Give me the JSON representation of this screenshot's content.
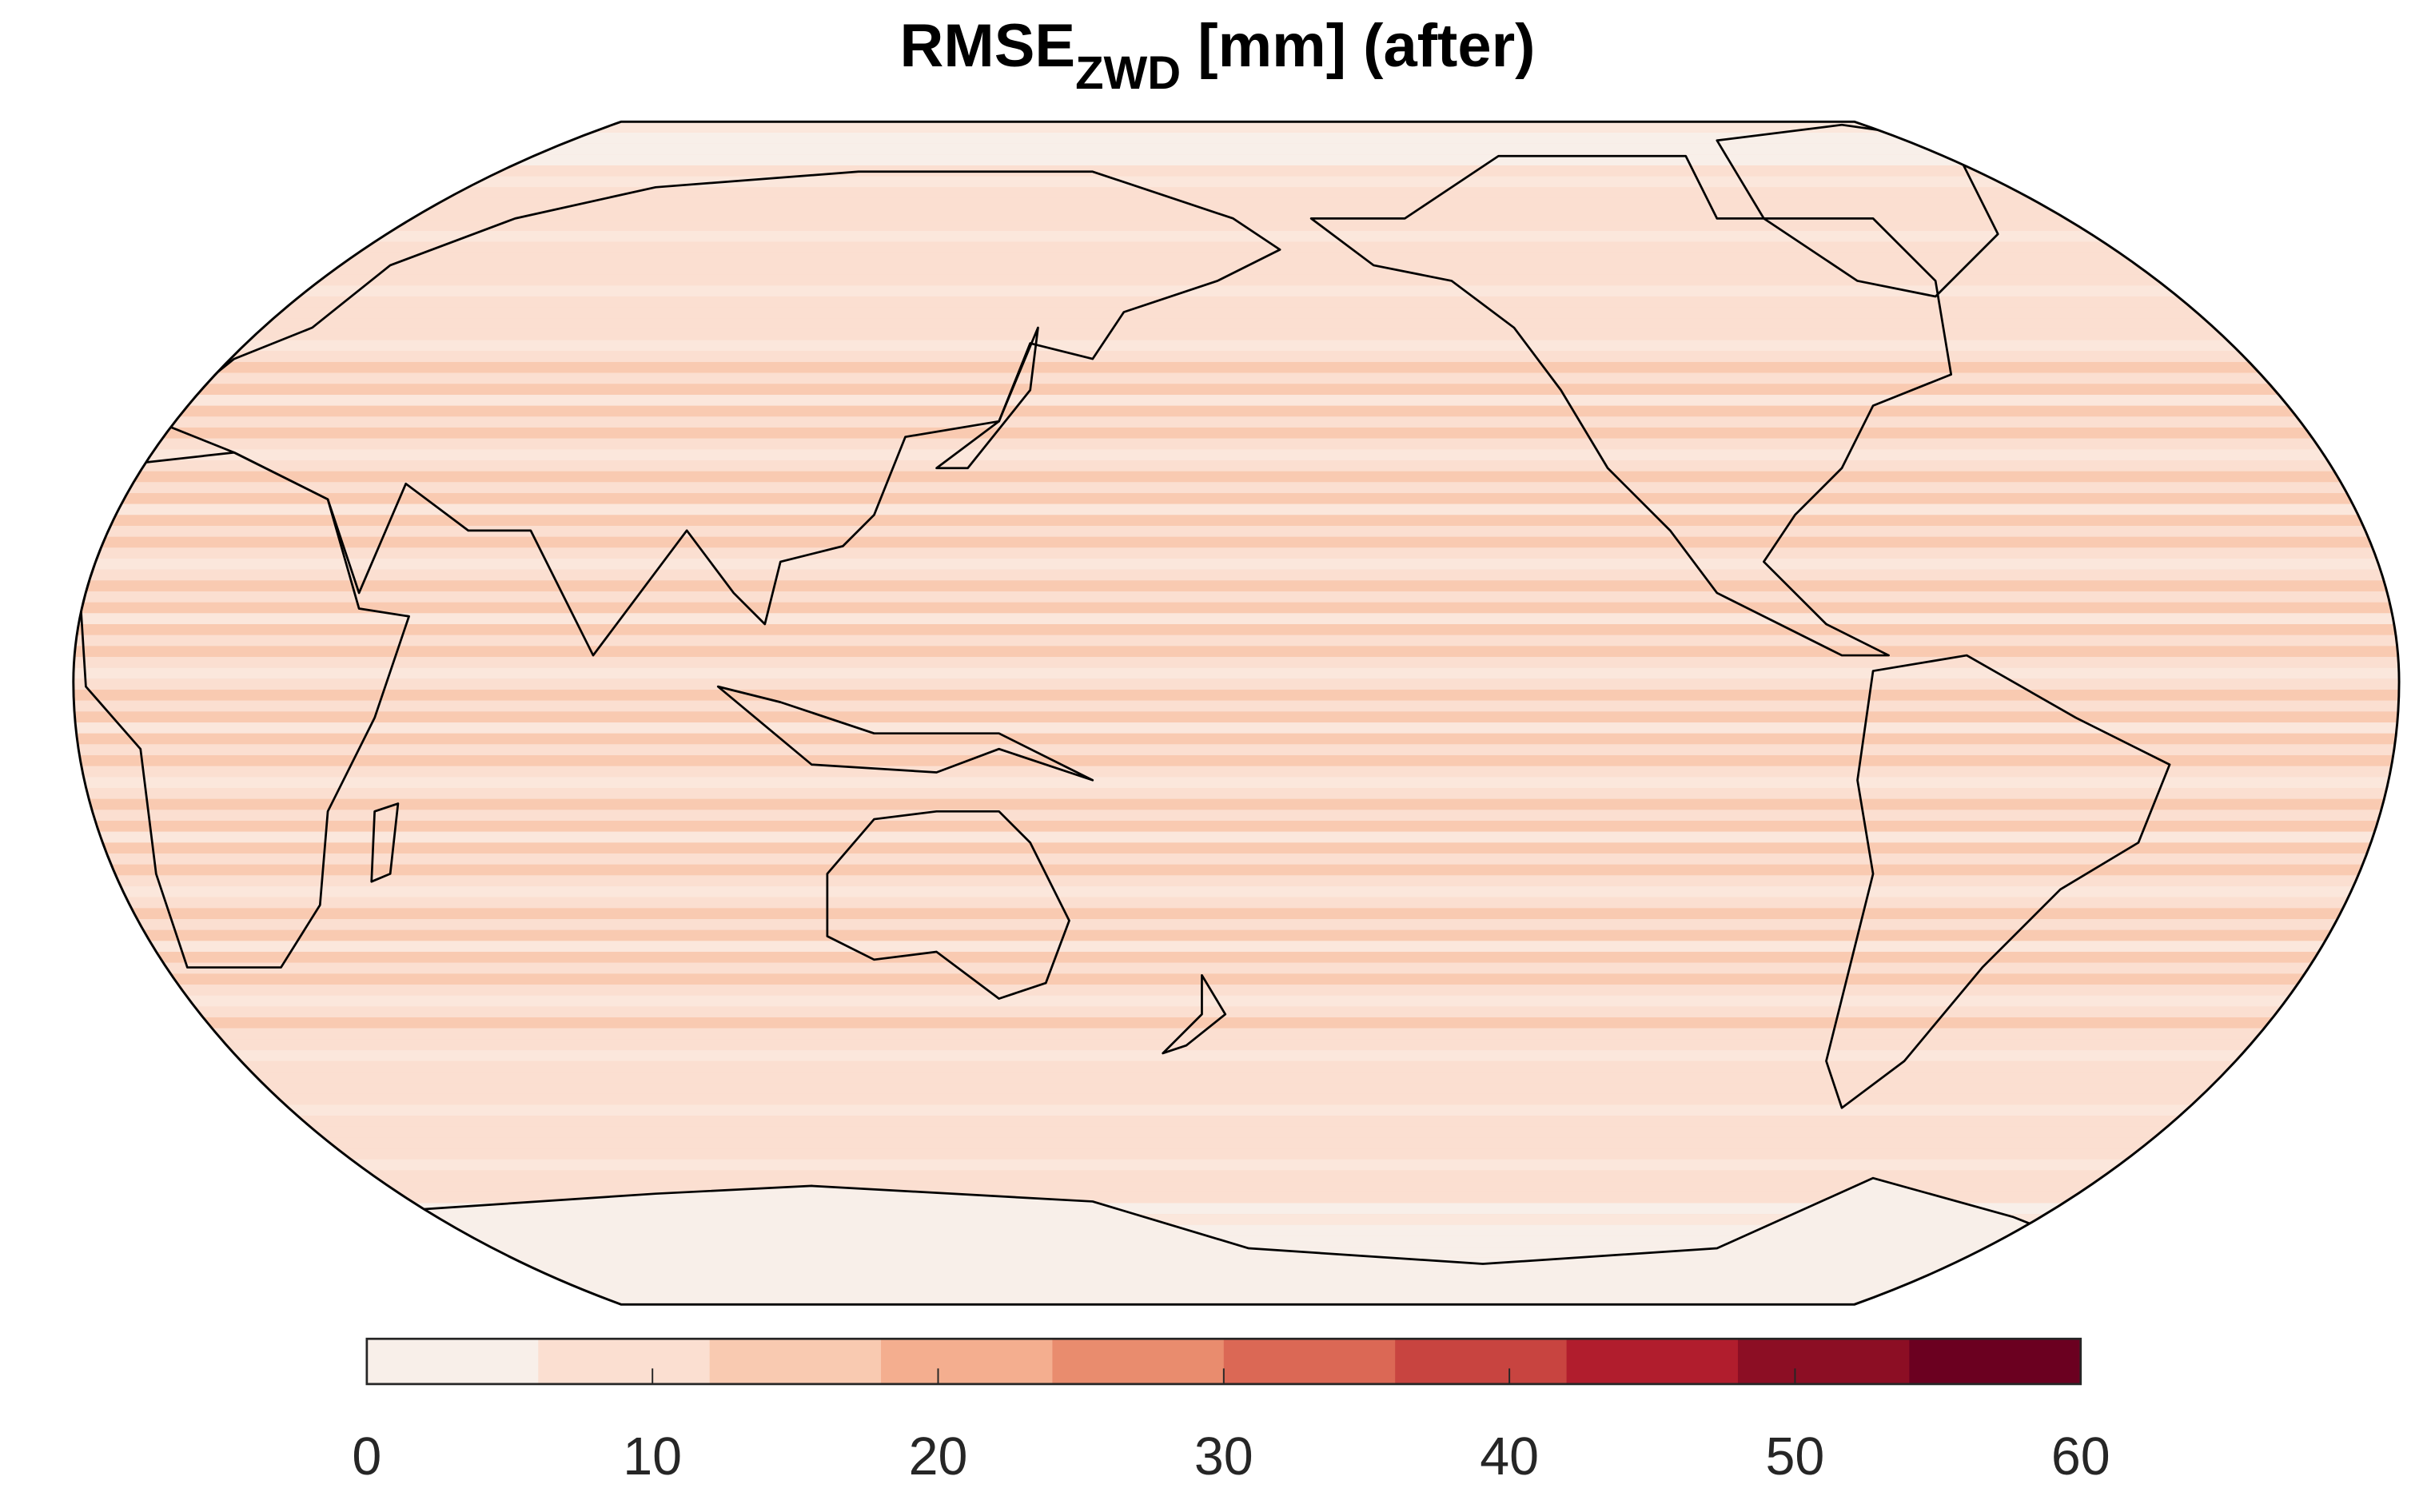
{
  "title": {
    "main": "RMSE",
    "subscript": "ZWD",
    "suffix": " [mm] (after)"
  },
  "colorbar": {
    "min": 0,
    "max": 60,
    "step": 6,
    "tick_labels": [
      "0",
      "10",
      "20",
      "30",
      "40",
      "50",
      "60"
    ],
    "tick_values": [
      0,
      10,
      20,
      30,
      40,
      50,
      60
    ],
    "colors": [
      "#f8efe9",
      "#fbdfd1",
      "#f9cab1",
      "#f4ae8f",
      "#e98c6e",
      "#db6855",
      "#c84440",
      "#b11d2d",
      "#8c0e24",
      "#6b0020"
    ]
  },
  "map": {
    "projection": "robinson",
    "land_outline_color": "#000000"
  }
}
